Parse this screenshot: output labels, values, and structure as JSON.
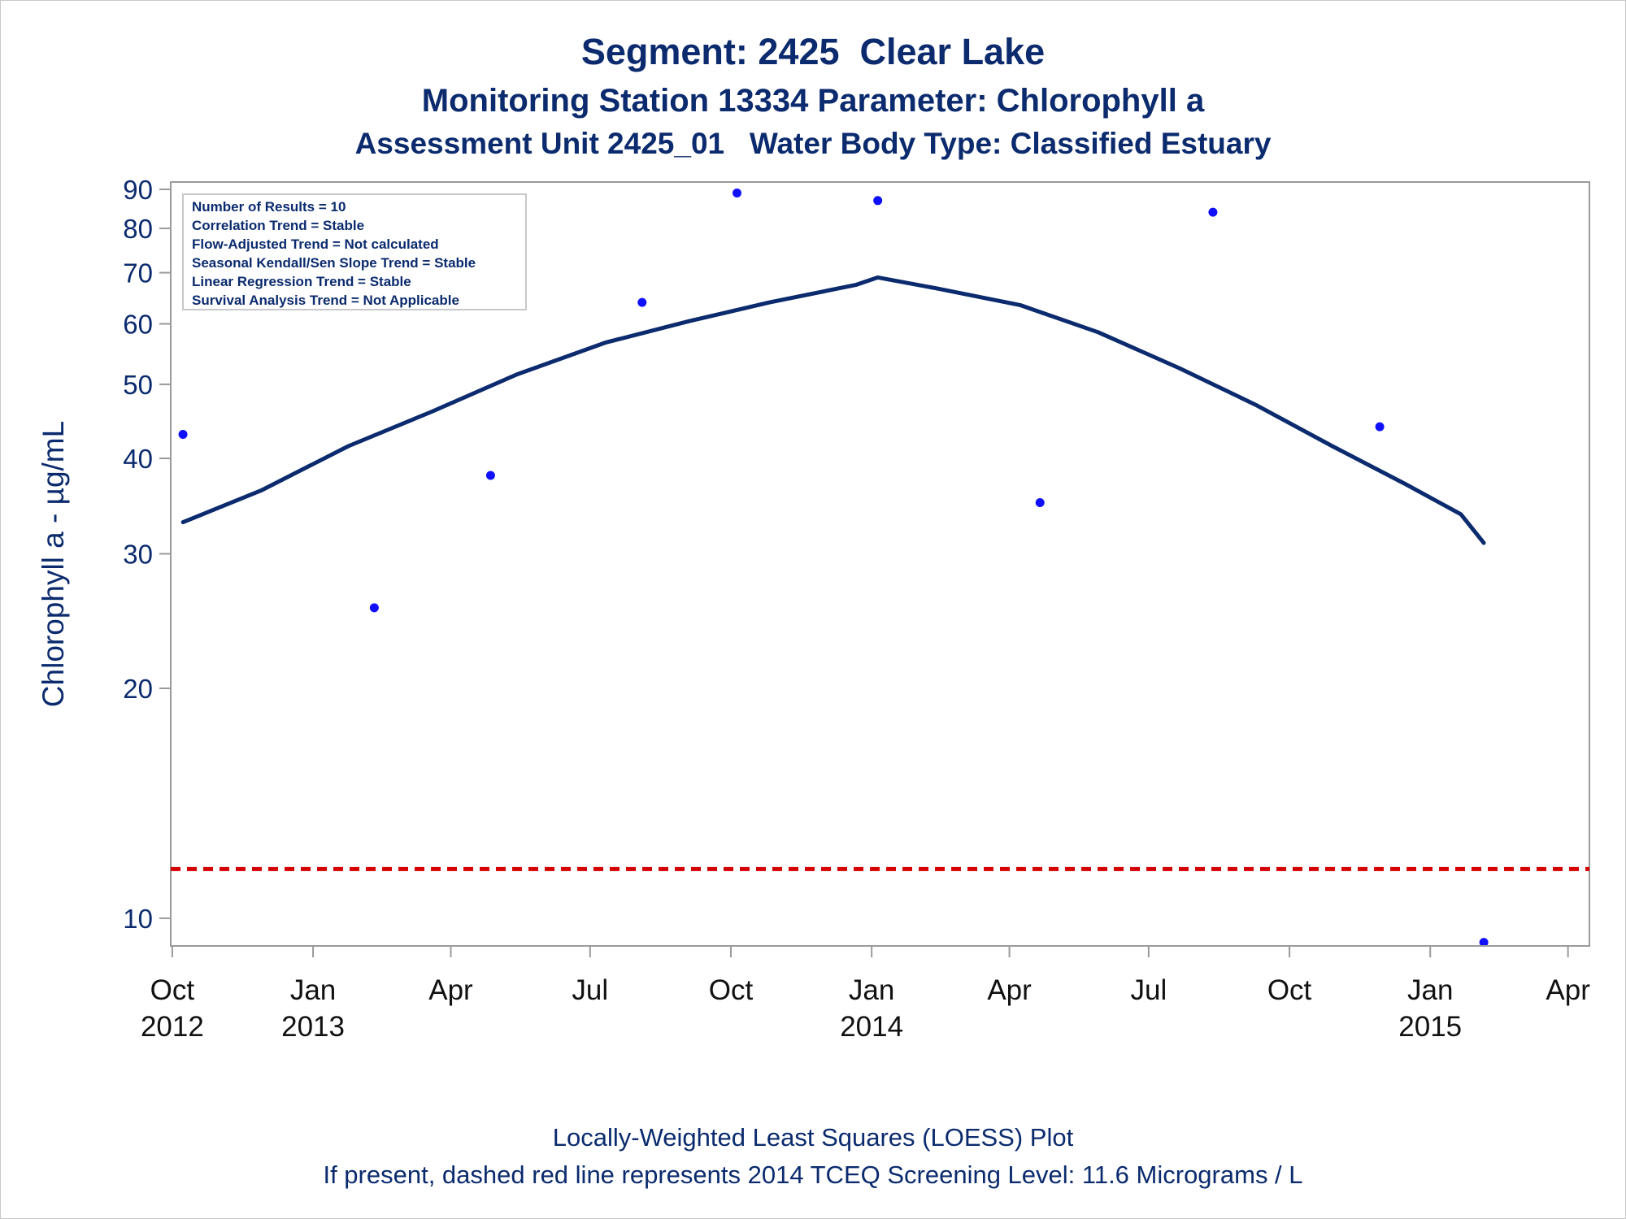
{
  "titles": {
    "line1": "Segment: 2425  Clear Lake",
    "line2": "Monitoring Station 13334 Parameter: Chlorophyll a",
    "line3": "Assessment Unit 2425_01   Water Body Type: Classified Estuary"
  },
  "footnotes": {
    "line1": "Locally-Weighted Least Squares (LOESS) Plot",
    "line2": "If present, dashed red line represents 2014 TCEQ Screening Level: 11.6 Micrograms / L"
  },
  "stats_box": [
    "Number of Results = 10",
    "Correlation Trend = Stable",
    "Flow-Adjusted Trend = Not calculated",
    "Seasonal Kendall/Sen Slope Trend = Stable",
    "Linear Regression Trend = Stable",
    "Survival Analysis Trend = Not Applicable"
  ],
  "colors": {
    "text": "#0b2b6e",
    "points": "#1010ff",
    "loess_line": "#0b2b6e",
    "screening_line": "#d40000",
    "axis": "#9a9a9a"
  },
  "chart_data": {
    "type": "scatter",
    "y_scale": "log",
    "ylabel": "Chlorophyll a -  µg/mL",
    "xlabel": "",
    "ylim": [
      9.2,
      92
    ],
    "xlim": [
      "2012-09-30",
      "2015-04-15"
    ],
    "yticks": [
      10,
      20,
      30,
      40,
      50,
      60,
      70,
      80,
      90
    ],
    "xticks": [
      {
        "date": "2012-10-01",
        "label": [
          "Oct",
          "2012"
        ]
      },
      {
        "date": "2013-01-01",
        "label": [
          "Jan",
          "2013"
        ]
      },
      {
        "date": "2013-04-01",
        "label": [
          "Apr",
          ""
        ]
      },
      {
        "date": "2013-07-01",
        "label": [
          "Jul",
          ""
        ]
      },
      {
        "date": "2013-10-01",
        "label": [
          "Oct",
          ""
        ]
      },
      {
        "date": "2014-01-01",
        "label": [
          "Jan",
          "2014"
        ]
      },
      {
        "date": "2014-04-01",
        "label": [
          "Apr",
          ""
        ]
      },
      {
        "date": "2014-07-01",
        "label": [
          "Jul",
          ""
        ]
      },
      {
        "date": "2014-10-01",
        "label": [
          "Oct",
          ""
        ]
      },
      {
        "date": "2015-01-01",
        "label": [
          "Jan",
          "2015"
        ]
      },
      {
        "date": "2015-04-01",
        "label": [
          "Apr",
          ""
        ]
      }
    ],
    "points": [
      {
        "date": "2012-10-08",
        "value": 43
      },
      {
        "date": "2013-02-10",
        "value": 25.5
      },
      {
        "date": "2013-04-27",
        "value": 38
      },
      {
        "date": "2013-08-04",
        "value": 64
      },
      {
        "date": "2013-10-05",
        "value": 89
      },
      {
        "date": "2014-01-05",
        "value": 87
      },
      {
        "date": "2014-04-21",
        "value": 35
      },
      {
        "date": "2014-08-12",
        "value": 84
      },
      {
        "date": "2014-11-29",
        "value": 44
      },
      {
        "date": "2015-02-05",
        "value": 9.3
      }
    ],
    "loess": [
      {
        "date": "2012-10-08",
        "value": 33
      },
      {
        "date": "2012-11-28",
        "value": 36.3
      },
      {
        "date": "2013-01-24",
        "value": 41.5
      },
      {
        "date": "2013-03-19",
        "value": 46
      },
      {
        "date": "2013-05-14",
        "value": 51.5
      },
      {
        "date": "2013-07-11",
        "value": 56.7
      },
      {
        "date": "2013-09-04",
        "value": 60.5
      },
      {
        "date": "2013-10-26",
        "value": 64
      },
      {
        "date": "2013-12-22",
        "value": 67.5
      },
      {
        "date": "2014-01-05",
        "value": 69
      },
      {
        "date": "2014-02-12",
        "value": 66.8
      },
      {
        "date": "2014-04-08",
        "value": 63.5
      },
      {
        "date": "2014-05-29",
        "value": 58.5
      },
      {
        "date": "2014-07-21",
        "value": 52.5
      },
      {
        "date": "2014-09-09",
        "value": 47
      },
      {
        "date": "2014-10-29",
        "value": 41.5
      },
      {
        "date": "2014-12-16",
        "value": 37
      },
      {
        "date": "2015-01-21",
        "value": 33.8
      },
      {
        "date": "2015-02-05",
        "value": 31
      }
    ],
    "reference_line": {
      "value": 11.6,
      "style": "dashed"
    }
  }
}
